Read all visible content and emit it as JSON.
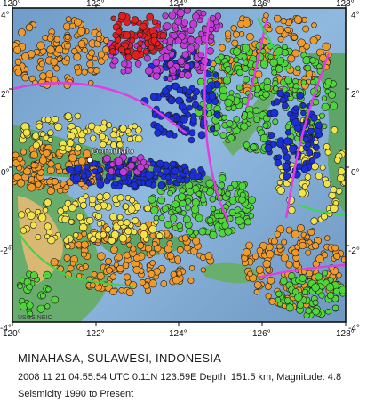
{
  "map": {
    "lon_ticks": [
      "120°",
      "122°",
      "124°",
      "126°",
      "128°"
    ],
    "lat_ticks_left": [
      "4°",
      "2°",
      "0°",
      "-2°",
      "-4°"
    ],
    "lat_ticks_right": [
      "4°",
      "2°",
      "0°",
      "-2°",
      "-4°"
    ],
    "lon_range": [
      120,
      128
    ],
    "lat_range": [
      -4,
      4
    ],
    "place_label": "Gorontalo",
    "credit": "USGS NEIC",
    "colors": {
      "ocean_deep": "#5a87b4",
      "ocean_shallow": "#8fb9df",
      "land_low": "#4f9b5a",
      "land_high": "#d7b56e",
      "plate_boundary": "#e23de0",
      "fault_line": "#38d84a",
      "depth_0_33": "#f09a2a",
      "depth_33_70": "#f3e34a",
      "depth_70_150": "#4fd43a",
      "depth_150_300": "#1b2ed8",
      "depth_300_500": "#c13cd6",
      "depth_500_800": "#e01f1f"
    }
  },
  "caption": {
    "title": "MINAHASA, SULAWESI, INDONESIA",
    "event": "2008 11 21 04:55:54 UTC 0.11N 123.59E Depth: 151.5 km, Magnitude: 4.8",
    "seismicity": "Seismicity 1990 to Present"
  }
}
